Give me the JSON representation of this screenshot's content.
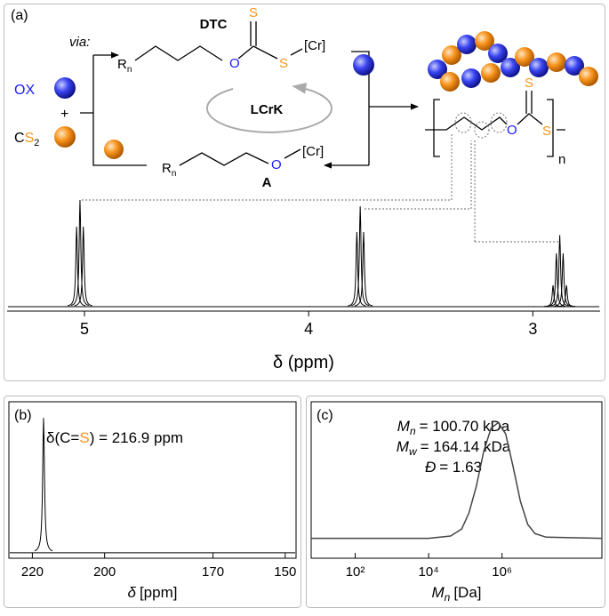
{
  "scheme": {
    "label": "(a)",
    "via": "via:",
    "dtc": "DTC",
    "a": "A",
    "catalyst": "LCrK",
    "ox": "OX",
    "plus": "+",
    "c": "C",
    "s": "S",
    "two": "2",
    "r": "R",
    "n": "n",
    "o": "O",
    "cr": "[Cr]"
  },
  "chart_data": [
    {
      "type": "spectrum",
      "xlabel": "δ (ppm)",
      "xlim": [
        5.345,
        2.7
      ],
      "xticks": [
        5,
        4,
        3
      ],
      "ylim": [
        -0.0417,
        1.083
      ],
      "color": "#000000",
      "x": [
        5.035,
        5.02,
        5.005,
        3.785,
        3.77,
        3.755,
        2.91,
        2.895,
        2.88,
        2.865,
        2.85
      ],
      "values": [
        0.75,
        1.0,
        0.75,
        0.7,
        0.94,
        0.7,
        0.2,
        0.5,
        0.67,
        0.5,
        0.2
      ]
    },
    {
      "type": "spectrum",
      "label": "(b)",
      "annotation": {
        "before": "δ(C=",
        "atom": "S",
        "after": ") = 216.9 ppm"
      },
      "xlabel": {
        "symbol": "δ",
        "unit": "[ppm]"
      },
      "xlim": [
        226.5,
        147
      ],
      "xticks": [
        220,
        200,
        170,
        150
      ],
      "ylim": [
        -0.0403,
        1.12
      ],
      "color": "#000000",
      "x": [
        216.9
      ],
      "values": [
        1.0
      ]
    },
    {
      "type": "line",
      "label": "(c)",
      "xscale": "log",
      "annotations": [
        {
          "symbol": "M",
          "sub": "n",
          "text": "= 100.70 kDa"
        },
        {
          "symbol": "M",
          "sub": "w",
          "text": "= 164.14 kDa"
        },
        {
          "symbol": "Đ",
          "text": "= 1.63"
        }
      ],
      "xlabel": {
        "symbol": "M",
        "sub": "n",
        "unit": "[Da]"
      },
      "xlim": [
        6.31,
        525000000
      ],
      "xticks": [
        {
          "value": 100,
          "label": "10²"
        },
        {
          "value": 10000,
          "label": "10⁴"
        },
        {
          "value": 1000000,
          "label": "10⁶"
        }
      ],
      "ylim": [
        -0.172,
        1.179
      ],
      "color": "#444444",
      "x": [
        6.31,
        1000,
        10000,
        39811,
        79433,
        125893,
        199526,
        316228,
        501187,
        794328,
        1258925,
        1995262,
        3162278,
        5011872,
        7943282,
        15848932,
        525000000
      ],
      "values": [
        0,
        0,
        0,
        0.02,
        0.08,
        0.22,
        0.45,
        0.75,
        0.95,
        1.0,
        0.9,
        0.62,
        0.32,
        0.12,
        0.04,
        0.01,
        0
      ]
    }
  ]
}
